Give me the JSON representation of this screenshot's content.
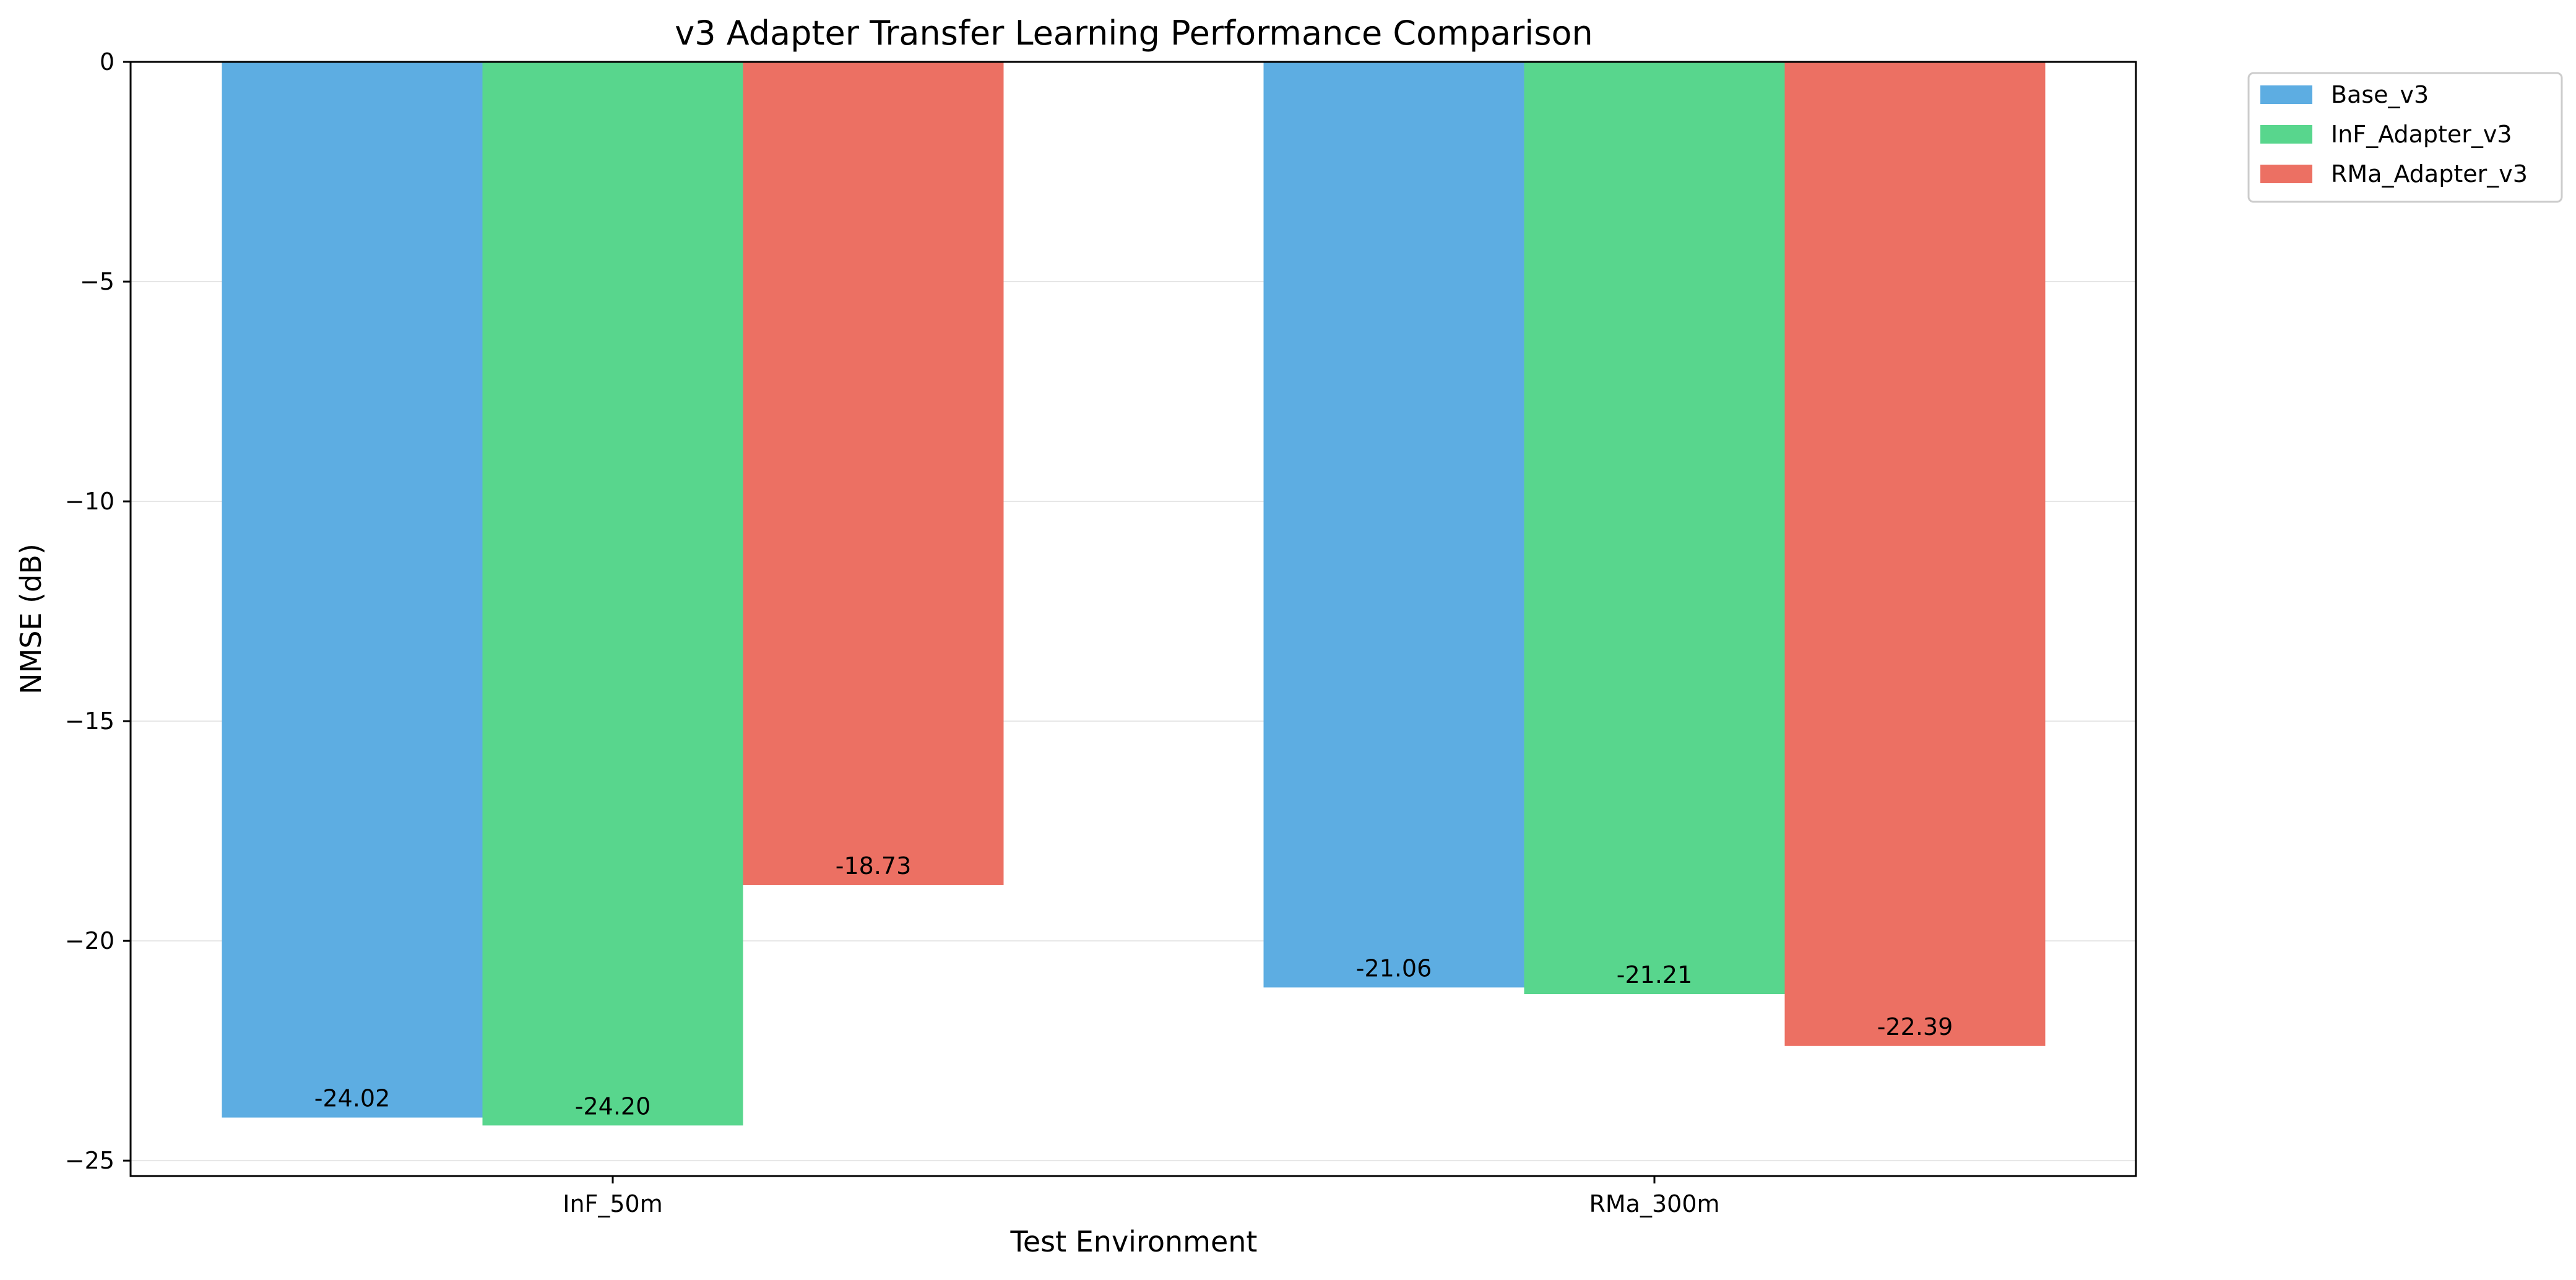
{
  "chart_data": {
    "type": "bar",
    "title": "v3 Adapter Transfer Learning Performance Comparison",
    "xlabel": "Test Environment",
    "ylabel": "NMSE (dB)",
    "categories": [
      "InF_50m",
      "RMa_300m"
    ],
    "series": [
      {
        "name": "Base_v3",
        "color": "#5DADE2",
        "values": [
          -24.02,
          -21.06
        ],
        "labels": [
          "-24.02",
          "-21.06"
        ]
      },
      {
        "name": "InF_Adapter_v3",
        "color": "#58D68D",
        "values": [
          -24.2,
          -21.21
        ],
        "labels": [
          "-24.20",
          "-21.21"
        ]
      },
      {
        "name": "RMa_Adapter_v3",
        "color": "#EC7063",
        "values": [
          -18.73,
          -22.39
        ],
        "labels": [
          "-18.73",
          "-22.39"
        ]
      }
    ],
    "ylim": [
      -25.35,
      0
    ],
    "yticks": [
      0,
      -5,
      -10,
      -15,
      -20,
      -25
    ],
    "ytick_labels": [
      "0",
      "−5",
      "−10",
      "−15",
      "−20",
      "−25"
    ],
    "grid": "horizontal",
    "legend_position": "outside-top-right"
  }
}
